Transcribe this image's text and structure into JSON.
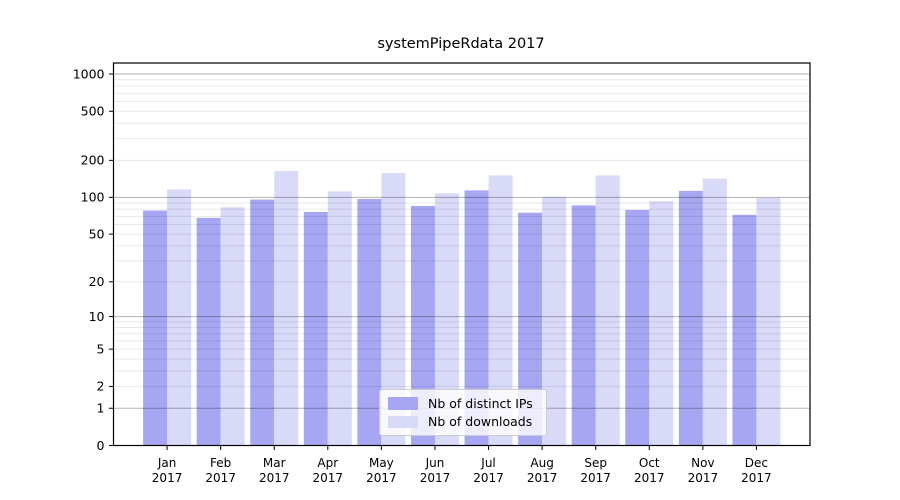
{
  "chart_data": {
    "type": "bar",
    "title": "systemPipeRdata 2017",
    "categories": [
      "Jan 2017",
      "Feb 2017",
      "Mar 2017",
      "Apr 2017",
      "May 2017",
      "Jun 2017",
      "Jul 2017",
      "Aug 2017",
      "Sep 2017",
      "Oct 2017",
      "Nov 2017",
      "Dec 2017"
    ],
    "series": [
      {
        "name": "Nb of distinct IPs",
        "color": "#a6a6f2",
        "values": [
          78,
          68,
          96,
          76,
          97,
          85,
          114,
          75,
          86,
          79,
          113,
          72
        ]
      },
      {
        "name": "Nb of downloads",
        "color": "#d9d9f8",
        "values": [
          116,
          83,
          164,
          112,
          158,
          108,
          151,
          101,
          151,
          93,
          142,
          99
        ]
      }
    ],
    "xlabel": "",
    "ylabel": "",
    "y_scale": "log10(1+x)",
    "y_ticks": [
      0,
      1,
      2,
      5,
      10,
      20,
      50,
      100,
      200,
      500,
      1000
    ],
    "ylim": [
      0,
      1224
    ],
    "grid": "major-and-minor-horizontal",
    "legend_position": "lower center, inside plot",
    "colors": {
      "major_grid": "rgba(0,0,0,0.30)",
      "minor_grid": "rgba(0,0,0,0.09)",
      "frame": "#000000",
      "text": "#000000",
      "background": "#ffffff"
    }
  }
}
